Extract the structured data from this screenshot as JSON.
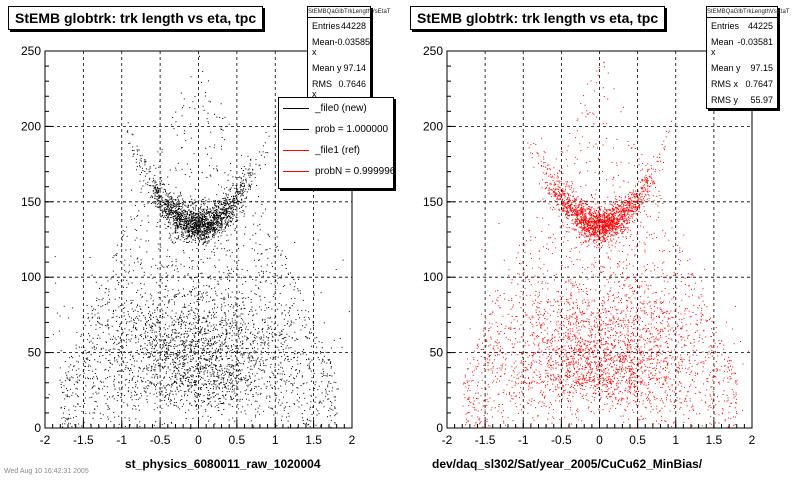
{
  "chart_data": [
    {
      "type": "scatter",
      "title": "StEMB globtrk: trk length vs eta, tpc",
      "xlabel": "st_physics_6080011_raw_1020004",
      "ylabel": "",
      "xlim": [
        -2,
        2
      ],
      "ylim": [
        0,
        250
      ],
      "xticks": [
        "-2",
        "-1.5",
        "-1",
        "-0.5",
        "0",
        "0.5",
        "1",
        "1.5",
        "2"
      ],
      "yticks": [
        "0",
        "50",
        "100",
        "150",
        "200",
        "250"
      ],
      "grid": true,
      "marker_color": "#000000",
      "stats": {
        "name": "StEMBQaGlbTrkLengthVsEtaT",
        "entries_label": "Entries",
        "entries": "44228",
        "meanx_label": "Mean x",
        "meanx": "-0.03585",
        "meany_label": "Mean y",
        "meany": "97.14",
        "rmsx_label": "RMS x",
        "rmsx": "0.7646"
      },
      "legend": {
        "placement": "top-right",
        "entries": [
          {
            "label": "_file0 (new)",
            "color": "#000000"
          },
          {
            "label": "prob = 1.000000",
            "color": "#000000"
          },
          {
            "label": "_file1 (ref)",
            "color": "#ff0000"
          },
          {
            "label": "probN = 0.999996",
            "color": "#ff0000"
          }
        ]
      }
    },
    {
      "type": "scatter",
      "title": "StEMB globtrk: trk length vs eta, tpc",
      "xlabel": "dev/daq_sl302/Sat/year_2005/CuCu62_MinBias/",
      "ylabel": "",
      "xlim": [
        -2,
        2
      ],
      "ylim": [
        0,
        250
      ],
      "xticks": [
        "-2",
        "-1.5",
        "-1",
        "-0.5",
        "0",
        "0.5",
        "1",
        "1.5",
        "2"
      ],
      "yticks": [
        "0",
        "50",
        "100",
        "150",
        "200",
        "250"
      ],
      "grid": true,
      "marker_color": "#ff0000",
      "stats": {
        "name": "StEMBQaGlbTrkLengthVsEtaT",
        "entries_label": "Entries",
        "entries": "44225",
        "meanx_label": "Mean x",
        "meanx": "-0.03581",
        "meany_label": "Mean y",
        "meany": "97.15",
        "rmsx_label": "RMS x",
        "rmsx": "0.7647",
        "rmsy_label": "RMS y",
        "rmsy": "55.97"
      }
    }
  ],
  "footer": "Wed Aug 10 16:42:31 2005"
}
